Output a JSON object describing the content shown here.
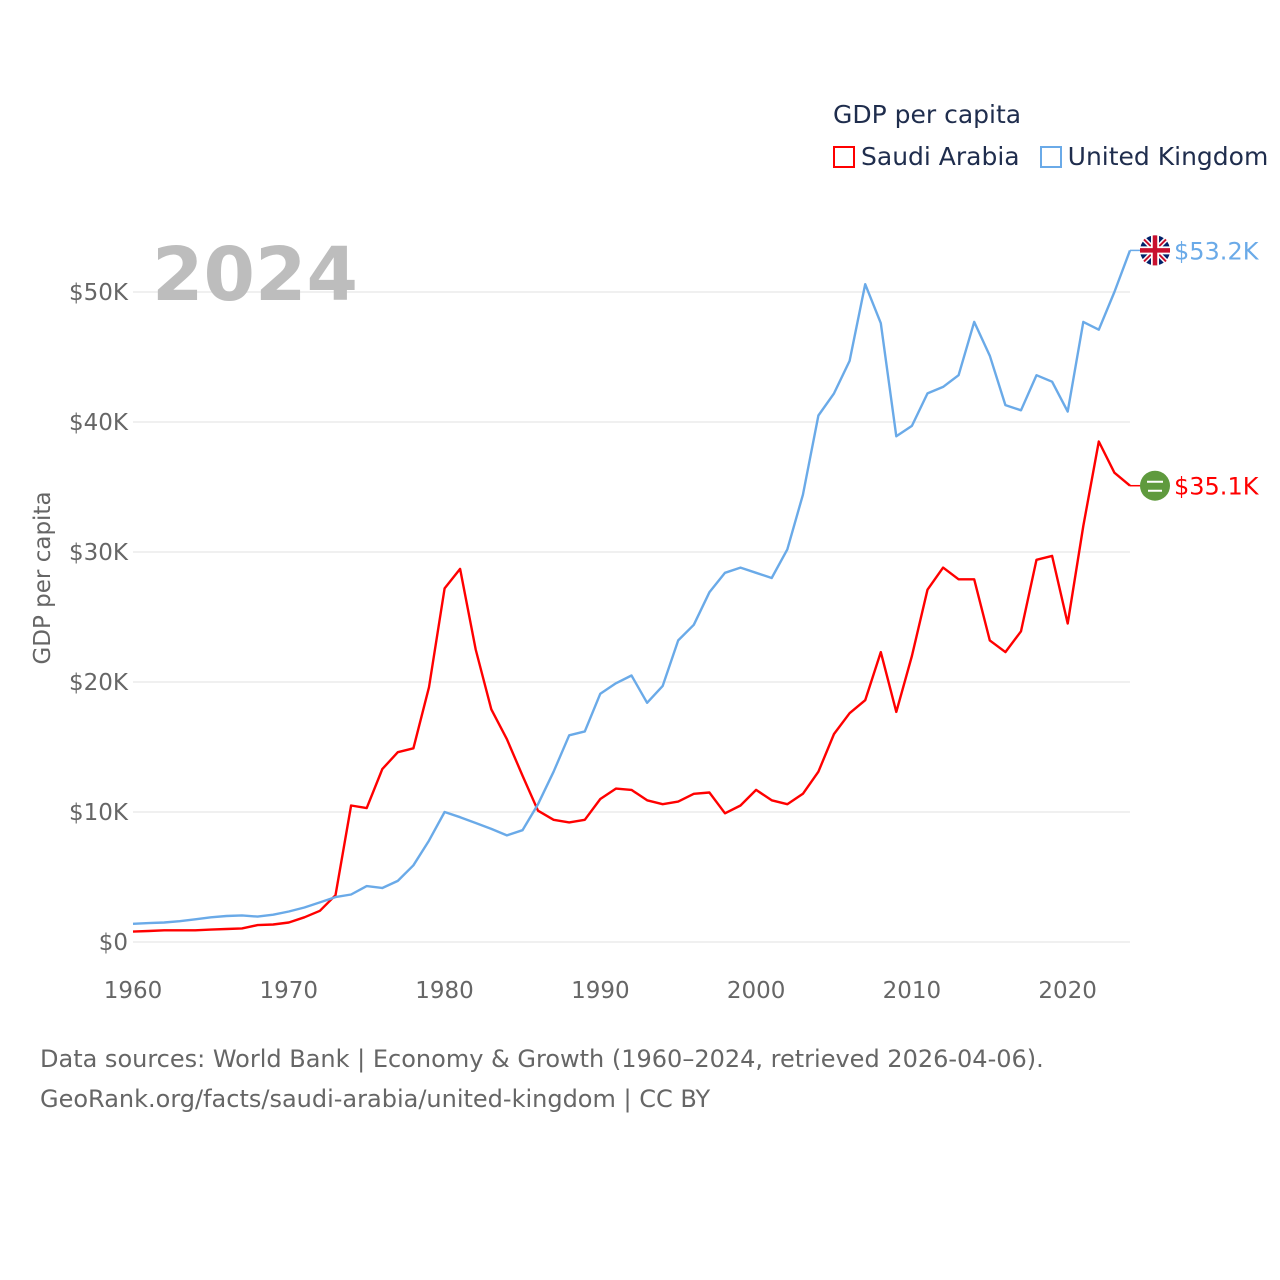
{
  "chart_data": {
    "type": "line",
    "title": "GDP per capita",
    "ylabel": "GDP per capita",
    "xlabel": "",
    "year_label": "2024",
    "xlim": [
      1960,
      2024
    ],
    "ylim": [
      0,
      55000
    ],
    "x_ticks": [
      1960,
      1970,
      1980,
      1990,
      2000,
      2010,
      2020
    ],
    "y_ticks": [
      0,
      10000,
      20000,
      30000,
      40000,
      50000
    ],
    "y_tick_labels": [
      "$0",
      "$10K",
      "$20K",
      "$30K",
      "$40K",
      "$50K"
    ],
    "grid": true,
    "legend_placement": "top-right",
    "x": [
      1960,
      1961,
      1962,
      1963,
      1964,
      1965,
      1966,
      1967,
      1968,
      1969,
      1970,
      1971,
      1972,
      1973,
      1974,
      1975,
      1976,
      1977,
      1978,
      1979,
      1980,
      1981,
      1982,
      1983,
      1984,
      1985,
      1986,
      1987,
      1988,
      1989,
      1990,
      1991,
      1992,
      1993,
      1994,
      1995,
      1996,
      1997,
      1998,
      1999,
      2000,
      2001,
      2002,
      2003,
      2004,
      2005,
      2006,
      2007,
      2008,
      2009,
      2010,
      2011,
      2012,
      2013,
      2014,
      2015,
      2016,
      2017,
      2018,
      2019,
      2020,
      2021,
      2022,
      2023,
      2024
    ],
    "series": [
      {
        "name": "Saudi Arabia",
        "color": "#ff0000",
        "end_label": "$35.1K",
        "flag": "saudi-arabia-flag",
        "values": [
          800,
          850,
          900,
          900,
          900,
          950,
          1000,
          1050,
          1300,
          1350,
          1500,
          1900,
          2400,
          3600,
          10500,
          10300,
          13300,
          14600,
          14900,
          19600,
          27200,
          28700,
          22500,
          17900,
          15600,
          12800,
          10100,
          9400,
          9200,
          9400,
          11000,
          11800,
          11700,
          10900,
          10600,
          10800,
          11400,
          11500,
          9900,
          10500,
          11700,
          10900,
          10600,
          11400,
          13100,
          16000,
          17600,
          18600,
          22300,
          17700,
          22000,
          27100,
          28800,
          27900,
          27900,
          23200,
          22300,
          23900,
          29400,
          29700,
          24500,
          32000,
          38500,
          36100,
          35100
        ]
      },
      {
        "name": "United Kingdom",
        "color": "#6aaae8",
        "end_label": "$53.2K",
        "flag": "united-kingdom-flag",
        "values": [
          1400,
          1450,
          1500,
          1600,
          1750,
          1900,
          2000,
          2050,
          1950,
          2100,
          2350,
          2650,
          3050,
          3450,
          3650,
          4300,
          4150,
          4700,
          5900,
          7800,
          10000,
          9600,
          9150,
          8700,
          8200,
          8600,
          10600,
          13100,
          15900,
          16200,
          19100,
          19900,
          20500,
          18400,
          19700,
          23200,
          24400,
          26900,
          28400,
          28800,
          28400,
          28000,
          30200,
          34400,
          40500,
          42200,
          44700,
          50600,
          47600,
          38900,
          39700,
          42200,
          42700,
          43600,
          47700,
          45100,
          41300,
          40900,
          43600,
          43100,
          40800,
          47700,
          47100,
          50000,
          53200
        ]
      }
    ]
  },
  "footer": {
    "line1": "Data sources: World Bank | Economy & Growth (1960–2024, retrieved 2026-04-06).",
    "line2": "GeoRank.org/facts/saudi-arabia/united-kingdom | CC BY"
  }
}
